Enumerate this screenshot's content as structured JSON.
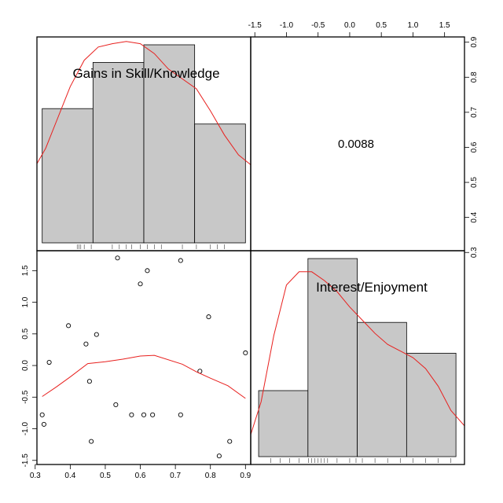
{
  "chart_data": {
    "type": "scatter-matrix",
    "variables": [
      "Gains in Skill/Knowledge",
      "Interest/Enjoyment"
    ],
    "correlation": "0.0088",
    "axes": {
      "var1_ticks": [
        0.3,
        0.4,
        0.5,
        0.6,
        0.7,
        0.8,
        0.9
      ],
      "var1_tick_labels": [
        "0.3",
        "0.4",
        "0.5",
        "0.6",
        "0.7",
        "0.8",
        "0.9"
      ],
      "var2_ticks": [
        -1.5,
        -1.0,
        -0.5,
        0.0,
        0.5,
        1.0,
        1.5
      ],
      "var2_tick_labels": [
        "-1.5",
        "-1.0",
        "-0.5",
        "0.0",
        "0.5",
        "1.0",
        "1.5"
      ],
      "var1_range": [
        0.305,
        0.915
      ],
      "var2_range": [
        -1.565,
        1.815
      ]
    },
    "histogram_var1": {
      "breaks": [
        0.32,
        0.465,
        0.61,
        0.755,
        0.9
      ],
      "heights": [
        0.61,
        0.82,
        0.9,
        0.54
      ],
      "density_curve": [
        [
          0.305,
          0.36
        ],
        [
          0.33,
          0.43
        ],
        [
          0.36,
          0.55
        ],
        [
          0.4,
          0.71
        ],
        [
          0.44,
          0.83
        ],
        [
          0.48,
          0.89
        ],
        [
          0.52,
          0.905
        ],
        [
          0.56,
          0.915
        ],
        [
          0.6,
          0.905
        ],
        [
          0.64,
          0.86
        ],
        [
          0.68,
          0.79
        ],
        [
          0.72,
          0.745
        ],
        [
          0.76,
          0.7
        ],
        [
          0.8,
          0.6
        ],
        [
          0.84,
          0.49
        ],
        [
          0.88,
          0.4
        ],
        [
          0.915,
          0.355
        ]
      ],
      "rug": [
        0.42,
        0.425,
        0.43,
        0.44,
        0.46,
        0.52,
        0.54,
        0.56,
        0.575,
        0.6,
        0.62,
        0.64,
        0.66,
        0.72,
        0.76,
        0.8,
        0.82,
        0.84
      ]
    },
    "histogram_var2": {
      "breaks": [
        -1.44,
        -0.66,
        0.12,
        0.9,
        1.68
      ],
      "heights": [
        0.3,
        0.9,
        0.61,
        0.47
      ],
      "density_curve": [
        [
          -1.565,
          0.1
        ],
        [
          -1.4,
          0.25
        ],
        [
          -1.2,
          0.55
        ],
        [
          -1.0,
          0.78
        ],
        [
          -0.8,
          0.84
        ],
        [
          -0.6,
          0.84
        ],
        [
          -0.4,
          0.8
        ],
        [
          -0.2,
          0.75
        ],
        [
          0.0,
          0.68
        ],
        [
          0.2,
          0.62
        ],
        [
          0.4,
          0.56
        ],
        [
          0.6,
          0.51
        ],
        [
          0.8,
          0.48
        ],
        [
          1.0,
          0.45
        ],
        [
          1.2,
          0.4
        ],
        [
          1.4,
          0.32
        ],
        [
          1.6,
          0.21
        ],
        [
          1.815,
          0.14
        ]
      ],
      "rug": [
        -1.25,
        -1.1,
        -0.95,
        -0.8,
        -0.65,
        -0.6,
        -0.55,
        -0.5,
        -0.45,
        -0.4,
        -0.35,
        -0.2,
        0.0,
        0.1,
        0.2,
        0.4,
        0.6,
        0.8,
        1.0,
        1.2,
        1.4,
        1.6
      ]
    },
    "scatter_points": [
      [
        0.32,
        -0.78
      ],
      [
        0.325,
        -0.93
      ],
      [
        0.34,
        0.05
      ],
      [
        0.395,
        0.63
      ],
      [
        0.445,
        0.34
      ],
      [
        0.455,
        -0.25
      ],
      [
        0.46,
        -1.2
      ],
      [
        0.475,
        0.49
      ],
      [
        0.53,
        -0.62
      ],
      [
        0.535,
        1.7
      ],
      [
        0.575,
        -0.78
      ],
      [
        0.6,
        1.29
      ],
      [
        0.61,
        -0.78
      ],
      [
        0.62,
        1.5
      ],
      [
        0.635,
        -0.78
      ],
      [
        0.715,
        1.66
      ],
      [
        0.715,
        -0.78
      ],
      [
        0.77,
        -0.09
      ],
      [
        0.795,
        0.77
      ],
      [
        0.825,
        -1.43
      ],
      [
        0.855,
        -1.2
      ],
      [
        0.9,
        0.2
      ]
    ],
    "lowess_curve": [
      [
        0.32,
        -0.49
      ],
      [
        0.36,
        -0.34
      ],
      [
        0.4,
        -0.18
      ],
      [
        0.45,
        0.03
      ],
      [
        0.5,
        0.06
      ],
      [
        0.55,
        0.1
      ],
      [
        0.6,
        0.15
      ],
      [
        0.64,
        0.16
      ],
      [
        0.72,
        0.02
      ],
      [
        0.76,
        -0.1
      ],
      [
        0.8,
        -0.2
      ],
      [
        0.85,
        -0.32
      ],
      [
        0.9,
        -0.52
      ]
    ]
  }
}
